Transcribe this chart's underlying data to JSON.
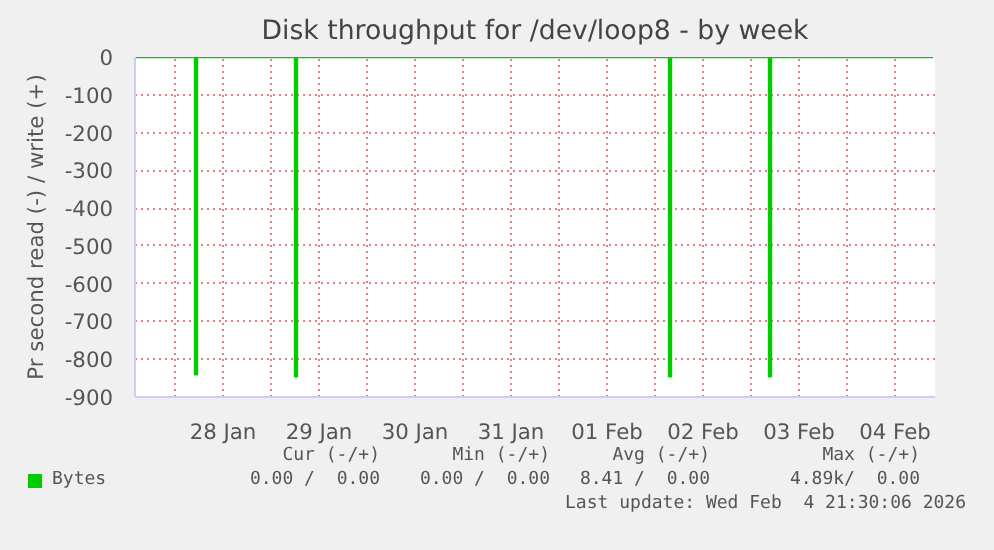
{
  "chart_data": {
    "type": "step",
    "title": "Disk throughput for /dev/loop8 - by week",
    "ylabel": "Pr second read (-) / write (+)",
    "x": [
      "2026-01-27T14:00",
      "2026-01-28T04:30",
      "2026-01-28T05:00",
      "2026-01-28T05:30",
      "2026-01-29T05:30",
      "2026-01-29T06:00",
      "2026-01-29T06:30",
      "2026-02-02T03:00",
      "2026-02-02T03:30",
      "2026-02-02T04:00",
      "2026-02-03T04:00",
      "2026-02-03T04:30",
      "2026-02-03T05:00",
      "2026-02-04T21:30"
    ],
    "series": [
      {
        "name": "Bytes",
        "color": "#00cc00",
        "values": [
          0,
          0,
          -840,
          0,
          0,
          -845,
          0,
          0,
          -845,
          0,
          0,
          -845,
          0,
          0
        ]
      }
    ],
    "xlim": [
      "2026-01-27T14:00",
      "2026-02-04T22:00"
    ],
    "ylim": [
      -900,
      0
    ],
    "xticks": [
      {
        "value": "2026-01-28T00:00",
        "label": null
      },
      {
        "value": "2026-01-28T12:00",
        "label": "28 Jan"
      },
      {
        "value": "2026-01-29T00:00",
        "label": null
      },
      {
        "value": "2026-01-29T12:00",
        "label": "29 Jan"
      },
      {
        "value": "2026-01-30T00:00",
        "label": null
      },
      {
        "value": "2026-01-30T12:00",
        "label": "30 Jan"
      },
      {
        "value": "2026-01-31T00:00",
        "label": null
      },
      {
        "value": "2026-01-31T12:00",
        "label": "31 Jan"
      },
      {
        "value": "2026-02-01T00:00",
        "label": null
      },
      {
        "value": "2026-02-01T12:00",
        "label": "01 Feb"
      },
      {
        "value": "2026-02-02T00:00",
        "label": null
      },
      {
        "value": "2026-02-02T12:00",
        "label": "02 Feb"
      },
      {
        "value": "2026-02-03T00:00",
        "label": null
      },
      {
        "value": "2026-02-03T12:00",
        "label": "03 Feb"
      },
      {
        "value": "2026-02-04T00:00",
        "label": null
      },
      {
        "value": "2026-02-04T12:00",
        "label": "04 Feb"
      }
    ],
    "yticks": [
      -900,
      -800,
      -700,
      -600,
      -500,
      -400,
      -300,
      -200,
      -100,
      0
    ],
    "grid": true,
    "legend": "bottom",
    "annotations": [
      "Cur (-/+)",
      "Min (-/+)",
      "Avg (-/+)",
      "Max (-/+)",
      "0.00 /  0.00",
      "0.00 /  0.00",
      "8.41 /  0.00",
      "4.89k/  0.00",
      "Last update: Wed Feb  4 21:30:06 2026"
    ]
  }
}
